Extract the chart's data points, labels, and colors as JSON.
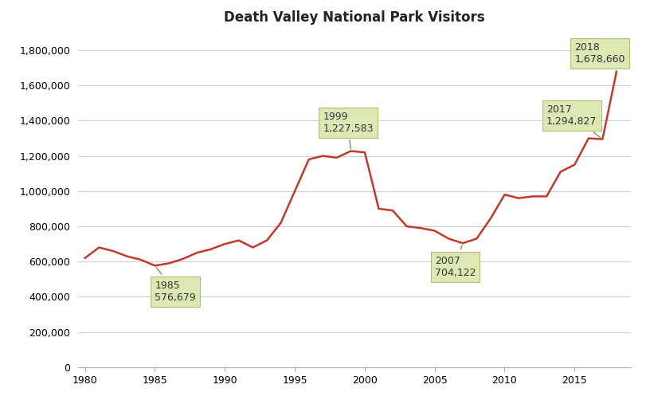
{
  "title": "Death Valley National Park Visitors",
  "years": [
    1980,
    1981,
    1982,
    1983,
    1984,
    1985,
    1986,
    1987,
    1988,
    1989,
    1990,
    1991,
    1992,
    1993,
    1994,
    1995,
    1996,
    1997,
    1998,
    1999,
    2000,
    2001,
    2002,
    2003,
    2004,
    2005,
    2006,
    2007,
    2008,
    2009,
    2010,
    2011,
    2012,
    2013,
    2014,
    2015,
    2016,
    2017,
    2018
  ],
  "visitors": [
    620000,
    680000,
    660000,
    630000,
    610000,
    576679,
    590000,
    615000,
    650000,
    670000,
    700000,
    720000,
    680000,
    720000,
    820000,
    1000000,
    1180000,
    1200000,
    1190000,
    1227583,
    1220000,
    900000,
    890000,
    800000,
    790000,
    775000,
    730000,
    704122,
    730000,
    845000,
    980000,
    960000,
    970000,
    970000,
    1110000,
    1150000,
    1300000,
    1294827,
    1678660
  ],
  "line_color": "#c0392b",
  "annotation_box_color": "#dce8b0",
  "annotation_box_edge": "#b0b870",
  "annotations": [
    {
      "year": 1985,
      "value": 576679,
      "label": "1985\n576,679",
      "xt": 1985,
      "yt": 430000,
      "ha": "left",
      "va": "center"
    },
    {
      "year": 1999,
      "value": 1227583,
      "label": "1999\n1,227,583",
      "xt": 1997,
      "yt": 1390000,
      "ha": "left",
      "va": "center"
    },
    {
      "year": 2007,
      "value": 704122,
      "label": "2007\n704,122",
      "xt": 2005,
      "yt": 570000,
      "ha": "left",
      "va": "center"
    },
    {
      "year": 2017,
      "value": 1294827,
      "label": "2017\n1,294,827",
      "xt": 2013,
      "yt": 1430000,
      "ha": "left",
      "va": "center"
    },
    {
      "year": 2018,
      "value": 1678660,
      "label": "2018\n1,678,660",
      "xt": 2015,
      "yt": 1780000,
      "ha": "left",
      "va": "center"
    }
  ],
  "xlim": [
    1979.5,
    2019
  ],
  "ylim": [
    0,
    1900000
  ],
  "xticks": [
    1980,
    1985,
    1990,
    1995,
    2000,
    2005,
    2010,
    2015
  ],
  "yticks": [
    0,
    200000,
    400000,
    600000,
    800000,
    1000000,
    1200000,
    1400000,
    1600000,
    1800000
  ],
  "background_color": "#ffffff",
  "grid_color": "#d0d0d0",
  "figsize": [
    8.16,
    5.12
  ],
  "dpi": 100
}
